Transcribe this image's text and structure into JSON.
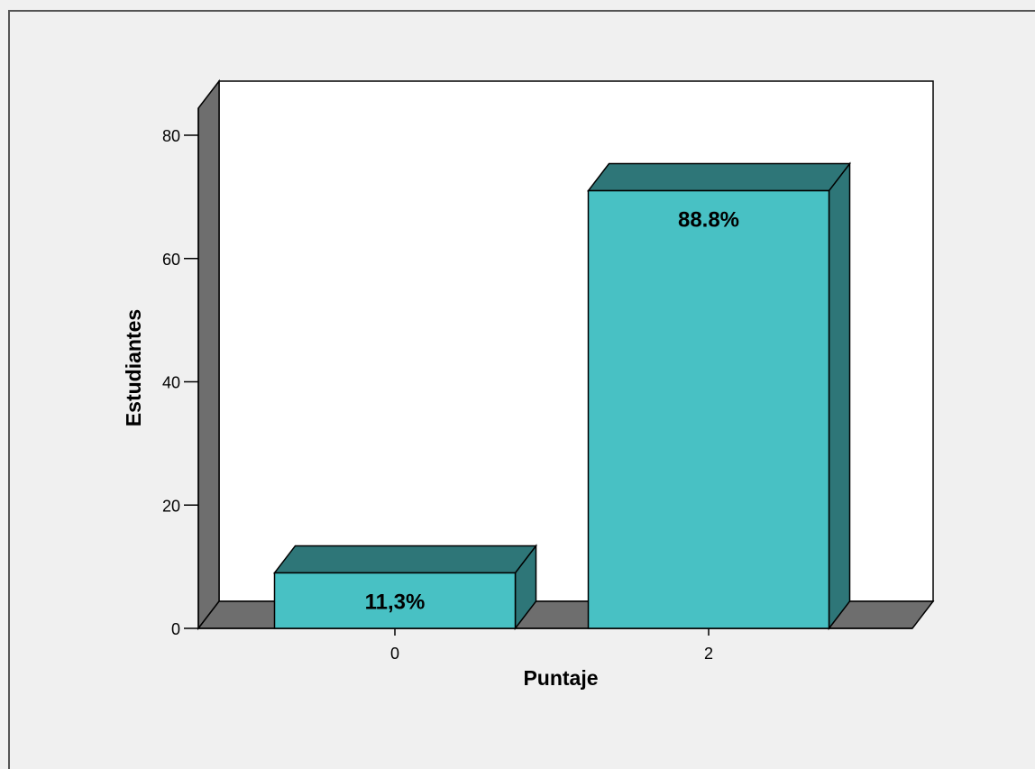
{
  "chart_data": {
    "type": "bar",
    "categories": [
      "0",
      "2"
    ],
    "values": [
      9,
      71
    ],
    "bar_labels": [
      "11,3%",
      "88.8%"
    ],
    "xlabel": "Puntaje",
    "ylabel": "Estudiantes",
    "ylim": [
      0,
      80
    ],
    "yticks": [
      "0",
      "20",
      "40",
      "60",
      "80"
    ],
    "grid": false,
    "three_d": true,
    "colors": {
      "bar_front": "#48c1c4",
      "bar_top": "#2e7678",
      "bar_side": "#2e7678",
      "floor": "#6e6e6e",
      "back_wall": "#ffffff",
      "left_wall": "#6e6e6e",
      "outline": "#000000",
      "background": "#f0f0f0"
    }
  }
}
